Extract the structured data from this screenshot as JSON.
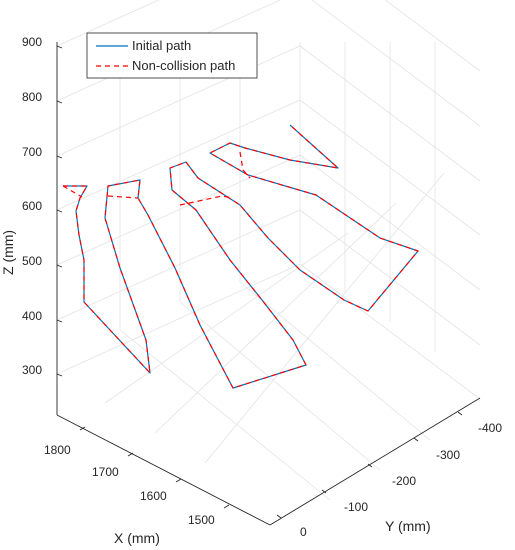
{
  "chart_data": {
    "type": "line",
    "title": "",
    "xlabel": "X (mm)",
    "ylabel": "Y (mm)",
    "zlabel": "Z (mm)",
    "x_ticks": [
      "1800",
      "1700",
      "1600",
      "1500"
    ],
    "y_ticks": [
      "0",
      "-100",
      "-200",
      "-300",
      "-400"
    ],
    "z_ticks": [
      "300",
      "400",
      "500",
      "600",
      "700",
      "800",
      "900"
    ],
    "grid": true,
    "legend_position": "top-left",
    "series": [
      {
        "name": "Initial path",
        "color": "#0072BD",
        "style": "solid",
        "paths": [
          [
            [
              0,
              -1
            ],
            [
              -2,
              55
            ],
            [
              3,
              85
            ],
            [
              -11,
              120
            ],
            [
              0,
              150
            ],
            [
              16,
              170
            ],
            [
              4,
              200
            ],
            [
              20,
              215
            ],
            [
              53,
              250
            ],
            [
              36,
              260
            ],
            [
              15,
              310
            ],
            [
              25,
              385
            ],
            [
              37,
              410
            ],
            [
              51,
              455
            ],
            [
              61,
              500
            ],
            [
              69,
              540
            ],
            [
              72,
              585
            ],
            [
              76,
              600
            ],
            [
              70,
              600
            ],
            [
              79,
              623
            ],
            [
              71,
              640
            ],
            [
              67,
              660
            ],
            [
              98,
              700
            ],
            [
              113,
              720
            ],
            [
              133,
              755
            ],
            [
              119,
              800
            ],
            [
              86,
              870
            ],
            [
              75,
              895
            ],
            [
              120,
              870
            ],
            [
              181,
              845
            ],
            [
              221,
              835
            ],
            [
              244,
              820
            ],
            [
              198,
              810
            ],
            [
              173,
              825
            ],
            [
              133,
              850
            ],
            [
              107,
              870
            ]
          ],
          [
            [
              26,
              430
            ],
            [
              55,
              465
            ],
            [
              96,
              495
            ],
            [
              128,
              525
            ],
            [
              161,
              570
            ],
            [
              190,
              610
            ]
          ]
        ]
      },
      {
        "name": "Non-collision path",
        "color": "#FF0000",
        "style": "dashed",
        "paths": [
          [
            [
              0,
              -1
            ],
            [
              -2,
              55
            ],
            [
              3,
              85
            ],
            [
              -11,
              120
            ],
            [
              0,
              150
            ],
            [
              16,
              170
            ],
            [
              4,
              200
            ],
            [
              20,
              215
            ],
            [
              53,
              250
            ],
            [
              36,
              260
            ],
            [
              15,
              310
            ],
            [
              25,
              385
            ],
            [
              37,
              410
            ],
            [
              51,
              455
            ],
            [
              61,
              500
            ],
            [
              69,
              540
            ],
            [
              72,
              585
            ],
            [
              76,
              600
            ],
            [
              70,
              600
            ],
            [
              79,
              623
            ],
            [
              71,
              640
            ],
            [
              67,
              660
            ],
            [
              98,
              700
            ],
            [
              113,
              720
            ],
            [
              133,
              755
            ],
            [
              119,
              800
            ],
            [
              86,
              870
            ],
            [
              75,
              895
            ],
            [
              120,
              870
            ],
            [
              181,
              845
            ],
            [
              221,
              835
            ],
            [
              244,
              820
            ],
            [
              198,
              810
            ],
            [
              173,
              825
            ],
            [
              133,
              850
            ],
            [
              107,
              870
            ]
          ],
          [
            [
              26,
              430
            ],
            [
              55,
              465
            ],
            [
              96,
              495
            ],
            [
              128,
              525
            ],
            [
              161,
              570
            ],
            [
              190,
              610
            ]
          ],
          [
            [
              61,
              500
            ],
            [
              44,
              505
            ],
            [
              70,
              600
            ]
          ],
          [
            [
              98,
              700
            ],
            [
              93,
              680
            ],
            [
              73,
              640
            ]
          ],
          [
            [
              133,
              755
            ],
            [
              118,
              760
            ],
            [
              91,
              750
            ]
          ],
          [
            [
              0,
              -1
            ],
            [
              -16,
              -16
            ]
          ]
        ]
      }
    ]
  },
  "legend": {
    "items": [
      {
        "label": "Initial path",
        "color": "#0072BD",
        "style": "solid"
      },
      {
        "label": "Non-collision path",
        "color": "#FF0000",
        "style": "dashed"
      }
    ]
  }
}
